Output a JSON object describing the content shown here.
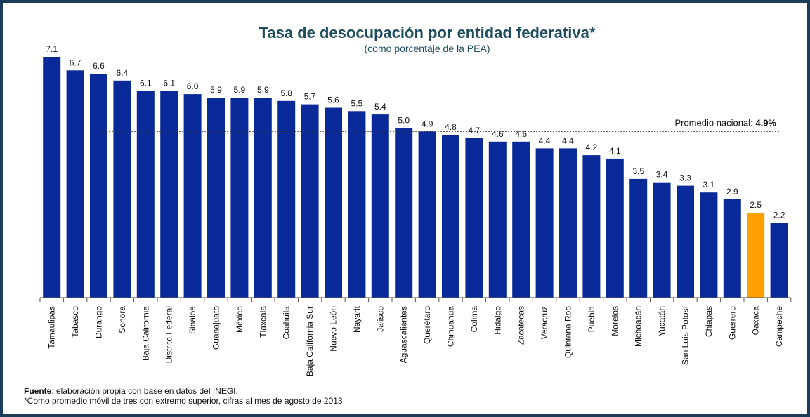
{
  "chart_data": {
    "type": "bar",
    "title": "Tasa de desocupación por entidad federativa*",
    "subtitle": "(como porcentaje de la PEA)",
    "categories": [
      "Tamaulipas",
      "Tabasco",
      "Durango",
      "Sonora",
      "Baja California",
      "Distrito Federal",
      "Sinaloa",
      "Guanajuato",
      "México",
      "Tlaxcala",
      "Coahuila",
      "Baja California Sur",
      "Nuevo León",
      "Nayarit",
      "Jalisco",
      "Aguascalientes",
      "Querétaro",
      "Chihuahua",
      "Colima",
      "Hidalgo",
      "Zacatecas",
      "Veracruz",
      "Quintana Roo",
      "Puebla",
      "Morelos",
      "Michoacán",
      "Yucatán",
      "San Luis Potosí",
      "Chiapas",
      "Guerrero",
      "Oaxaca",
      "Campeche"
    ],
    "values": [
      7.1,
      6.7,
      6.6,
      6.4,
      6.1,
      6.1,
      6.0,
      5.9,
      5.9,
      5.9,
      5.8,
      5.7,
      5.6,
      5.5,
      5.4,
      5.0,
      4.9,
      4.8,
      4.7,
      4.6,
      4.6,
      4.4,
      4.4,
      4.2,
      4.1,
      3.5,
      3.4,
      3.3,
      3.1,
      2.9,
      2.5,
      2.2
    ],
    "value_labels": [
      "7.1",
      "6.7",
      "6.6",
      "6.4",
      "6.1",
      "6.1",
      "6.0",
      "5.9",
      "5.9",
      "5.9",
      "5.8",
      "5.7",
      "5.6",
      "5.5",
      "5.4",
      "5.0",
      "4.9",
      "4.8",
      "4.7",
      "4.6",
      "4.6",
      "4.4",
      "4.4",
      "4.2",
      "4.1",
      "3.5",
      "3.4",
      "3.3",
      "3.1",
      "2.9",
      "2.5",
      "2.2"
    ],
    "highlight_category": "Oaxaca",
    "reference_line": {
      "value": 4.9,
      "label": "Promedio nacional: ",
      "label_value": "4.9%"
    },
    "ylim": [
      0,
      7.1
    ],
    "grid": false,
    "colors": {
      "bar": "#0b2a9a",
      "highlight": "#ff9f00",
      "frame": "#1c3c5a"
    }
  },
  "footer": {
    "source_label": "Fuente",
    "source_text": ": elaboración propia con base en datos del INEGI.",
    "note": "*Como promedio móvil de tres con extremo superior, cifras al mes de agosto de 2013"
  }
}
